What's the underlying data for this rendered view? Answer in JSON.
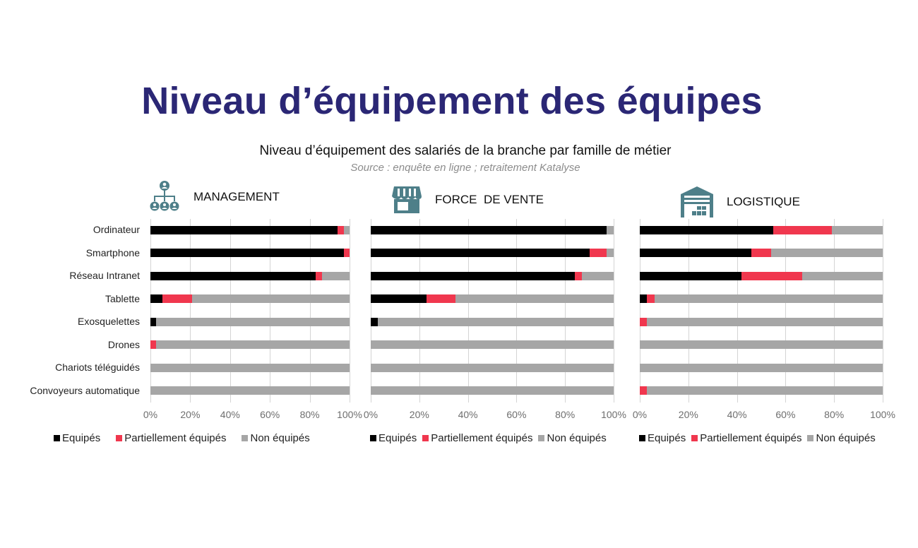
{
  "page": {
    "title": "Niveau d’équipement des équipes",
    "subtitle": "Niveau d’équipement des salariés de la branche par famille de métier",
    "source": "Source : enquête en ligne ; retraitement Katalyse"
  },
  "colors": {
    "title": "#2b2775",
    "equipes": "#000000",
    "partiellement": "#f0374e",
    "non": "#a6a6a6",
    "icon": "#4e7f89",
    "grid": "#d4d4d4"
  },
  "categories": [
    "Ordinateur",
    "Smartphone",
    "Réseau Intranet",
    "Tablette",
    "Exosquelettes",
    "Drones",
    "Chariots téléguidés",
    "Convoyeurs automatique"
  ],
  "ticks": [
    "0%",
    "20%",
    "40%",
    "60%",
    "80%",
    "100%"
  ],
  "legend": {
    "equipes": "Equipés",
    "partiellement": "Partiellement équipés",
    "non": "Non équipés"
  },
  "panels": [
    {
      "name": "MANAGEMENT",
      "icon": "org-chart-icon"
    },
    {
      "name": "FORCE  DE VENTE",
      "icon": "storefront-icon"
    },
    {
      "name": "LOGISTIQUE",
      "icon": "warehouse-icon"
    }
  ],
  "chart_data": [
    {
      "type": "bar",
      "orientation": "horizontal",
      "stacked": "percent",
      "title": "MANAGEMENT",
      "categories": [
        "Ordinateur",
        "Smartphone",
        "Réseau Intranet",
        "Tablette",
        "Exosquelettes",
        "Drones",
        "Chariots téléguidés",
        "Convoyeurs automatique"
      ],
      "series": [
        {
          "name": "Equipés",
          "values": [
            94,
            97,
            83,
            6,
            3,
            0,
            0,
            0
          ]
        },
        {
          "name": "Partiellement équipés",
          "values": [
            3,
            3,
            3,
            15,
            0,
            3,
            0,
            0
          ]
        },
        {
          "name": "Non équipés",
          "values": [
            3,
            0,
            14,
            79,
            97,
            97,
            100,
            100
          ]
        }
      ],
      "xlim": [
        0,
        100
      ],
      "xticks": [
        "0%",
        "20%",
        "40%",
        "60%",
        "80%",
        "100%"
      ],
      "grid": true,
      "legend_position": "bottom"
    },
    {
      "type": "bar",
      "orientation": "horizontal",
      "stacked": "percent",
      "title": "FORCE DE VENTE",
      "categories": [
        "Ordinateur",
        "Smartphone",
        "Réseau Intranet",
        "Tablette",
        "Exosquelettes",
        "Drones",
        "Chariots téléguidés",
        "Convoyeurs automatique"
      ],
      "series": [
        {
          "name": "Equipés",
          "values": [
            97,
            90,
            84,
            23,
            3,
            0,
            0,
            0
          ]
        },
        {
          "name": "Partiellement équipés",
          "values": [
            0,
            7,
            3,
            12,
            0,
            0,
            0,
            0
          ]
        },
        {
          "name": "Non équipés",
          "values": [
            3,
            3,
            13,
            65,
            97,
            100,
            100,
            100
          ]
        }
      ],
      "xlim": [
        0,
        100
      ],
      "xticks": [
        "0%",
        "20%",
        "40%",
        "60%",
        "80%",
        "100%"
      ],
      "grid": true,
      "legend_position": "bottom"
    },
    {
      "type": "bar",
      "orientation": "horizontal",
      "stacked": "percent",
      "title": "LOGISTIQUE",
      "categories": [
        "Ordinateur",
        "Smartphone",
        "Réseau Intranet",
        "Tablette",
        "Exosquelettes",
        "Drones",
        "Chariots téléguidés",
        "Convoyeurs automatique"
      ],
      "series": [
        {
          "name": "Equipés",
          "values": [
            55,
            46,
            42,
            3,
            0,
            0,
            0,
            0
          ]
        },
        {
          "name": "Partiellement équipés",
          "values": [
            24,
            8,
            25,
            3,
            3,
            0,
            0,
            3
          ]
        },
        {
          "name": "Non équipés",
          "values": [
            21,
            46,
            33,
            94,
            97,
            100,
            100,
            97
          ]
        }
      ],
      "xlim": [
        0,
        100
      ],
      "xticks": [
        "0%",
        "20%",
        "40%",
        "60%",
        "80%",
        "100%"
      ],
      "grid": true,
      "legend_position": "bottom"
    }
  ]
}
